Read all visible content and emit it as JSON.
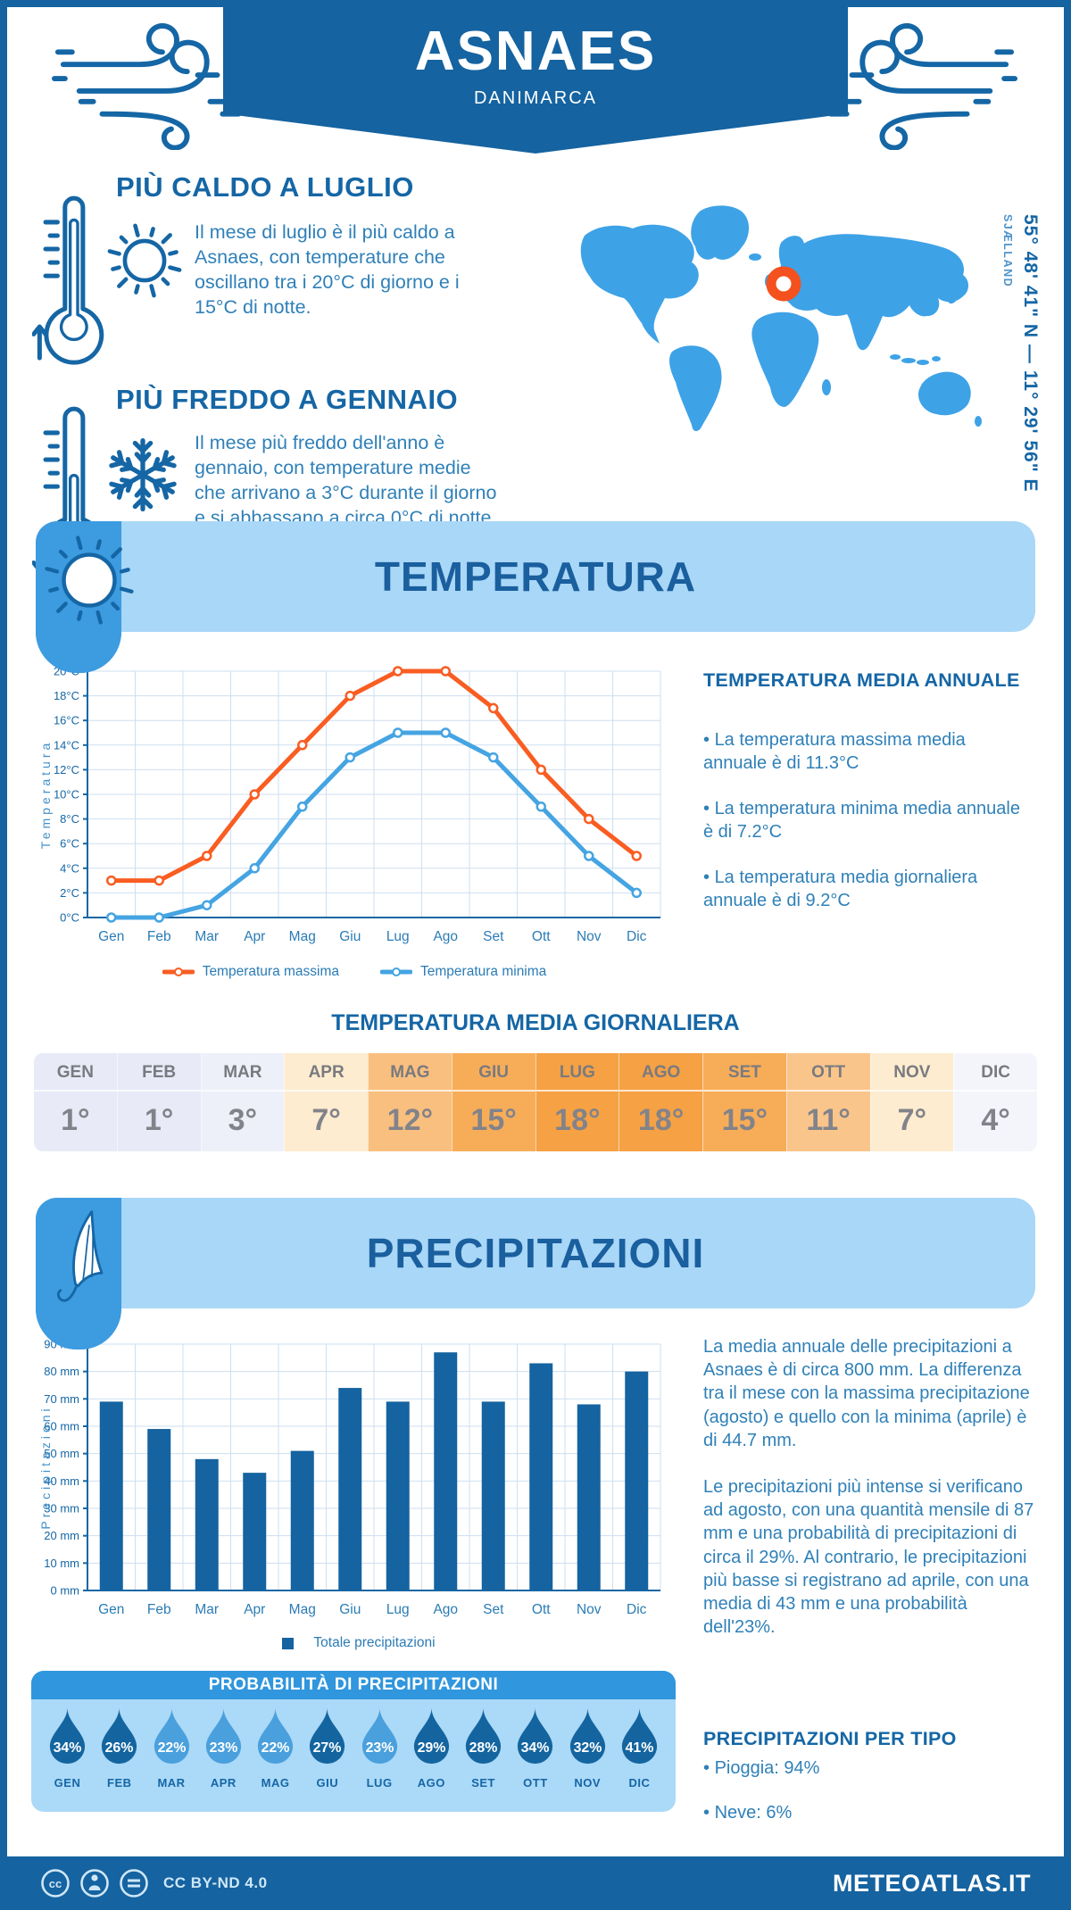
{
  "colors": {
    "primary_dark": "#1563a0",
    "primary_mid": "#3d9be0",
    "primary_light": "#a9d7f7",
    "heading_blue": "#1566a5",
    "body_blue": "#2f80b8",
    "map_blue": "#3ea2e7",
    "marker_orange": "#f4511e",
    "line_max_orange": "#f95d22",
    "line_min_blue": "#45a4e2",
    "bar_blue": "#1563a0",
    "drop_dark": "#14659f",
    "drop_light": "#4aa0dc",
    "prob_bar": "#3096dd",
    "table_text": "#82838a"
  },
  "header": {
    "city": "ASNAES",
    "country": "DANIMARCA"
  },
  "location": {
    "region": "SJÆLLAND",
    "coordinates": "55° 48' 41\" N — 11° 29' 56\" E"
  },
  "highlights": {
    "warm": {
      "title": "PIÙ CALDO A LUGLIO",
      "text": "Il mese di luglio è il più caldo a Asnaes, con temperature che oscillano tra i 20°C di giorno e i 15°C di notte."
    },
    "cold": {
      "title": "PIÙ FREDDO A GENNAIO",
      "text": "Il mese più freddo dell'anno è gennaio, con temperature medie che arrivano a 3°C durante il giorno e si abbassano a circa 0°C di notte."
    }
  },
  "temperature": {
    "banner_title": "TEMPERATURA",
    "annual_title": "TEMPERATURA MEDIA ANNUALE",
    "annual_bullets": [
      "La temperatura massima media annuale è di 11.3°C",
      "La temperatura minima media annuale è di 7.2°C",
      "La temperatura media giornaliera annuale è di 9.2°C"
    ],
    "daily_title": "TEMPERATURA MEDIA GIORNALIERA",
    "daily": {
      "months": [
        "GEN",
        "FEB",
        "MAR",
        "APR",
        "MAG",
        "GIU",
        "LUG",
        "AGO",
        "SET",
        "OTT",
        "NOV",
        "DIC"
      ],
      "values": [
        "1°",
        "1°",
        "3°",
        "7°",
        "12°",
        "15°",
        "18°",
        "18°",
        "15°",
        "11°",
        "7°",
        "4°"
      ],
      "cell_colors": [
        "#e8eaf7",
        "#e8eaf7",
        "#eef0f9",
        "#fdeccf",
        "#f9bf7e",
        "#f7ad58",
        "#f5a144",
        "#f5a144",
        "#f7ad58",
        "#fac58a",
        "#fdeccf",
        "#f4f5fb"
      ]
    }
  },
  "precipitation": {
    "banner_title": "PRECIPITAZIONI",
    "paragraphs": [
      "La media annuale delle precipitazioni a Asnaes è di circa 800 mm. La differenza tra il mese con la massima precipitazione (agosto) e quello con la minima (aprile) è di 44.7 mm.",
      "Le precipitazioni più intense si verificano ad agosto, con una quantità mensile di 87 mm e una probabilità di precipitazioni di circa il 29%. Al contrario, le precipitazioni più basse si registrano ad aprile, con una media di 43 mm e una probabilità dell'23%."
    ],
    "probability_title": "PROBABILITÀ DI PRECIPITAZIONI",
    "probability": {
      "months": [
        "GEN",
        "FEB",
        "MAR",
        "APR",
        "MAG",
        "GIU",
        "LUG",
        "AGO",
        "SET",
        "OTT",
        "NOV",
        "DIC"
      ],
      "values": [
        "34%",
        "26%",
        "22%",
        "23%",
        "22%",
        "27%",
        "23%",
        "29%",
        "28%",
        "34%",
        "32%",
        "41%"
      ],
      "variant": [
        "dark",
        "dark",
        "light",
        "light",
        "light",
        "dark",
        "light",
        "dark",
        "dark",
        "dark",
        "dark",
        "dark"
      ]
    },
    "types_title": "PRECIPITAZIONI PER TIPO",
    "types": [
      "Pioggia: 94%",
      "Neve: 6%"
    ]
  },
  "footer": {
    "license": "CC BY-ND 4.0",
    "brand": "METEOATLAS.IT"
  },
  "chart_data": [
    {
      "type": "line",
      "categories": [
        "Gen",
        "Feb",
        "Mar",
        "Apr",
        "Mag",
        "Giu",
        "Lug",
        "Ago",
        "Set",
        "Ott",
        "Nov",
        "Dic"
      ],
      "series": [
        {
          "name": "Temperatura massima",
          "color": "#f95d22",
          "values": [
            3,
            3,
            5,
            10,
            14,
            18,
            20,
            20,
            17,
            12,
            8,
            5
          ]
        },
        {
          "name": "Temperatura minima",
          "color": "#45a4e2",
          "values": [
            0,
            0,
            1,
            4,
            9,
            13,
            15,
            15,
            13,
            9,
            5,
            2
          ]
        }
      ],
      "title": "",
      "xlabel": "",
      "ylabel": "Temperatura",
      "ylim": [
        0,
        20
      ],
      "ytick_step": 2,
      "ytick_suffix": "°C",
      "grid": true,
      "legend_position": "bottom"
    },
    {
      "type": "bar",
      "categories": [
        "Gen",
        "Feb",
        "Mar",
        "Apr",
        "Mag",
        "Giu",
        "Lug",
        "Ago",
        "Set",
        "Ott",
        "Nov",
        "Dic"
      ],
      "series": [
        {
          "name": "Totale precipitazioni",
          "color": "#1563a0",
          "values": [
            69,
            59,
            48,
            43,
            51,
            74,
            69,
            87,
            69,
            83,
            68,
            80
          ]
        }
      ],
      "title": "",
      "xlabel": "",
      "ylabel": "Precipitazioni",
      "ylim": [
        0,
        90
      ],
      "ytick_step": 10,
      "ytick_suffix": " mm",
      "grid": true,
      "legend_position": "bottom"
    }
  ]
}
